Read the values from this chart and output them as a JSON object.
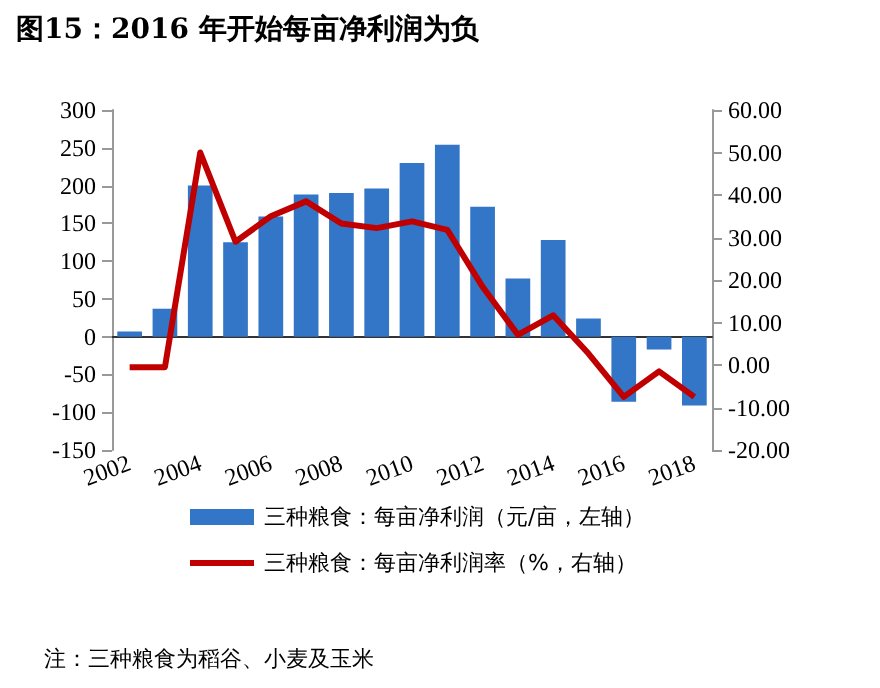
{
  "chart_data": {
    "type": "bar",
    "title": "图15：2016 年开始每亩净利润为负",
    "categories": [
      "2002",
      null,
      "2004",
      null,
      "2006",
      null,
      "2008",
      null,
      "2010",
      null,
      "2012",
      null,
      "2014",
      null,
      "2016",
      null,
      "2018"
    ],
    "series": [
      {
        "name": "三种粮食：每亩净利润（元/亩，左轴）",
        "color": "#3375c6",
        "values": [
          7,
          37,
          200,
          125,
          159,
          188,
          190,
          196,
          230,
          254,
          172,
          77,
          128,
          24,
          -86,
          -17,
          -91
        ]
      },
      {
        "name": "三种粮食：每亩净利润率（%，右轴）",
        "type": "line",
        "axis": "y2",
        "color": "#c00000",
        "values": [
          -0.5,
          -0.5,
          50,
          29,
          35,
          38.5,
          33.3,
          32.2,
          33.8,
          31.8,
          18.4,
          7.1,
          11.7,
          2.7,
          -7.5,
          -1.5,
          -7.5
        ]
      }
    ],
    "ylim": [
      -150,
      300
    ],
    "yticks": [
      -150,
      -100,
      -50,
      0,
      50,
      100,
      150,
      200,
      250,
      300
    ],
    "y2lim": [
      -20,
      60
    ],
    "y2ticks": [
      {
        "value": -20,
        "label": "-20.00"
      },
      {
        "value": -10,
        "label": "-10.00"
      },
      {
        "value": 0,
        "label": "0.00"
      },
      {
        "value": 10,
        "label": "10.00"
      },
      {
        "value": 20,
        "label": "20.00"
      },
      {
        "value": 30,
        "label": "30.00"
      },
      {
        "value": 40,
        "label": "40.00"
      },
      {
        "value": 50,
        "label": "50.00"
      },
      {
        "value": 60,
        "label": "60.00"
      }
    ],
    "legend": "bottom",
    "marker": "none",
    "annotations": [
      "注：三种粮食为稻谷、小麦及玉米"
    ]
  }
}
